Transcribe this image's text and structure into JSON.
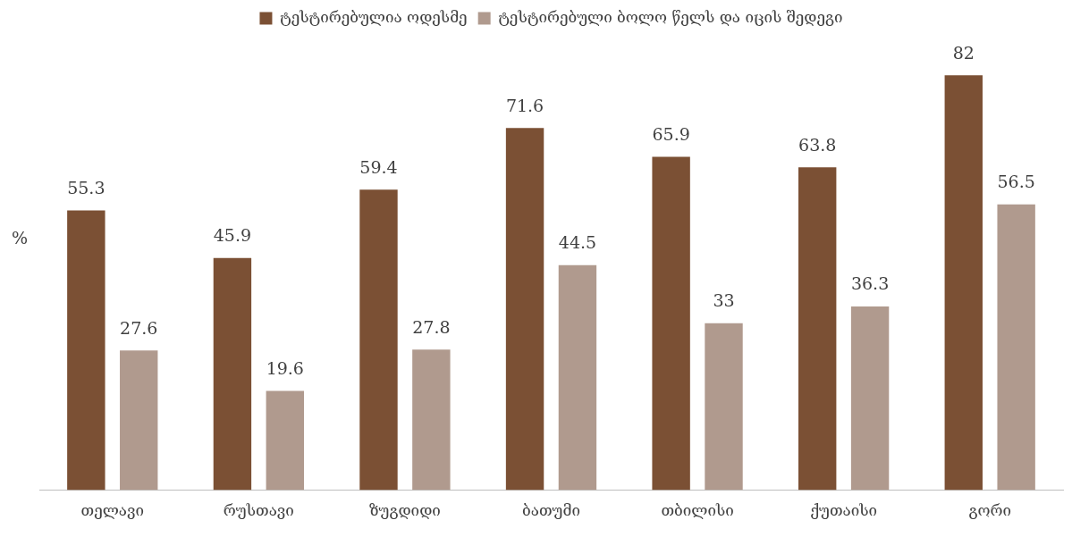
{
  "chart_data": {
    "type": "bar",
    "ylabel": "%",
    "categories": [
      "თელავი",
      "რუსთავი",
      "ზუგდიდი",
      "ბათუმი",
      "თბილისი",
      "ქუთაისი",
      "გორი"
    ],
    "series": [
      {
        "name": "ტესტირებულია ოდესმე",
        "color": "#7b5034",
        "values": [
          55.3,
          45.9,
          59.4,
          71.6,
          65.9,
          63.8,
          82
        ]
      },
      {
        "name": "ტესტირებული ბოლო წელს და იცის შედეგი",
        "color": "#b09a8e",
        "values": [
          27.6,
          19.6,
          27.8,
          44.5,
          33,
          36.3,
          56.5
        ]
      }
    ],
    "data_labels": true,
    "legend": "top",
    "grid": false
  }
}
